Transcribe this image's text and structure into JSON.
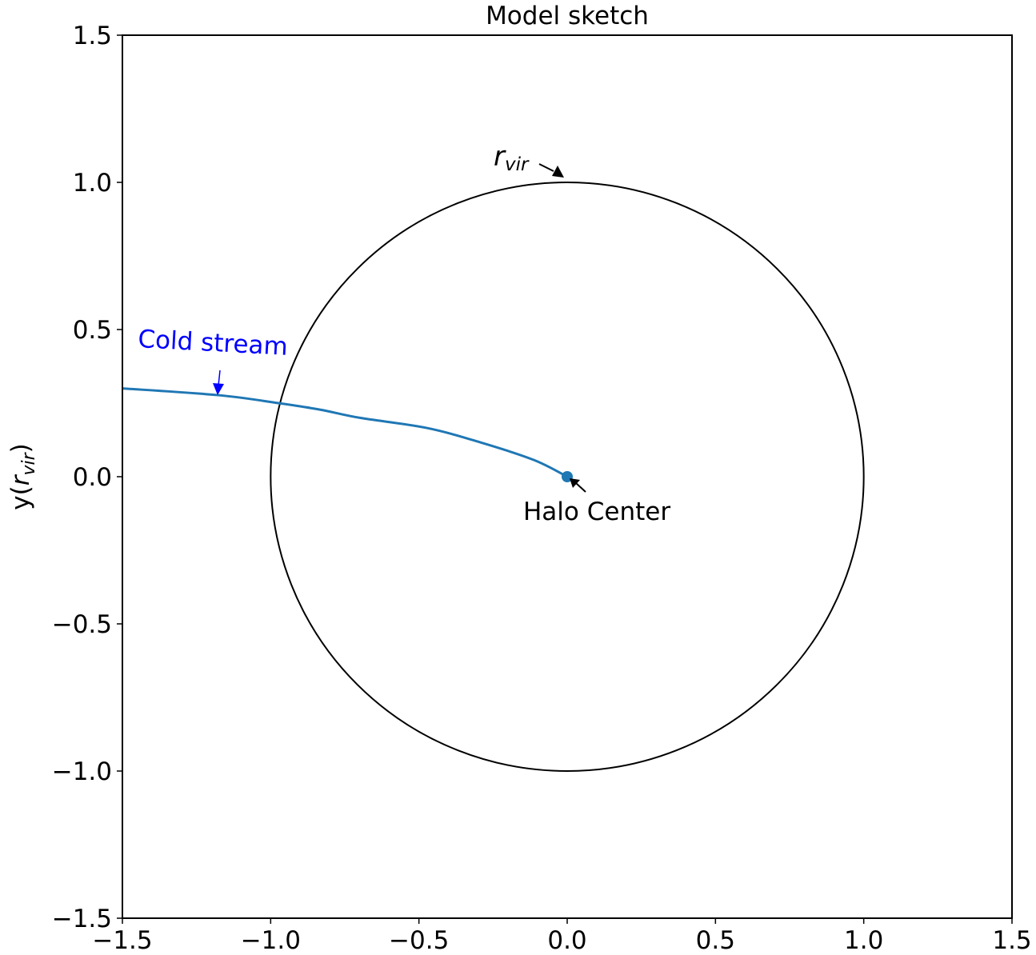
{
  "chart_data": {
    "type": "line",
    "title": "Model sketch",
    "xlabel": "",
    "ylabel": "y(r_vir)",
    "ylabel_parts": {
      "prefix": "y(",
      "main": "r",
      "sub": "vir",
      "suffix": ")"
    },
    "xlim": [
      -1.5,
      1.5
    ],
    "ylim": [
      -1.5,
      1.5
    ],
    "grid": false,
    "legend": null,
    "x_ticks": [
      -1.5,
      -1.0,
      -0.5,
      0.0,
      0.5,
      1.0,
      1.5
    ],
    "x_tick_labels": [
      "−1.5",
      "−1.0",
      "−0.5",
      "0.0",
      "0.5",
      "1.0",
      "1.5"
    ],
    "y_ticks": [
      1.5,
      1.0,
      0.5,
      0.0,
      -0.5,
      -1.0,
      -1.5
    ],
    "y_tick_labels": [
      "1.5",
      "1.0",
      "0.5",
      "0.0",
      "−0.5",
      "−1.0",
      "−1.5"
    ],
    "series": [
      {
        "name": "Virial radius circle",
        "kind": "circle",
        "center": [
          0.0,
          0.0
        ],
        "radius": 1.0,
        "color": "#000000"
      },
      {
        "name": "Cold stream",
        "kind": "line",
        "color": "#1f77b4",
        "x": [
          -1.5,
          -1.176,
          -0.974,
          -0.834,
          -0.699,
          -0.475,
          -0.294,
          -0.113,
          0.0
        ],
        "y": [
          0.3,
          0.277,
          0.25,
          0.228,
          0.2,
          0.166,
          0.117,
          0.057,
          0.0
        ]
      },
      {
        "name": "Halo center",
        "kind": "point",
        "color": "#1f77b4",
        "x": [
          0.0
        ],
        "y": [
          0.0
        ]
      }
    ],
    "annotations": [
      {
        "text": "Cold stream",
        "color": "#0000ff",
        "text_xy": [
          -1.45,
          0.45
        ],
        "arrow_to": [
          -1.18,
          0.27
        ],
        "rotation_deg": 3
      },
      {
        "text": "Halo Center",
        "color": "#000000",
        "text_xy": [
          -0.15,
          -0.13
        ],
        "arrow_to": [
          0.0,
          0.0
        ]
      },
      {
        "text_main": "r",
        "text_sub": "vir",
        "color": "#000000",
        "text_xy": [
          -0.25,
          1.05
        ],
        "arrow_to": [
          -0.01,
          1.01
        ]
      }
    ]
  },
  "labels": {
    "title": "Model sketch",
    "cold_stream": "Cold stream",
    "halo_center": "Halo Center",
    "rvir_main": "r",
    "rvir_sub": "vir",
    "ylabel_prefix": "y(",
    "ylabel_main": "r",
    "ylabel_sub": "vir",
    "ylabel_suffix": ")"
  },
  "colors": {
    "stream": "#1f77b4",
    "annotation_blue": "#0000ff",
    "axes": "#000000"
  }
}
